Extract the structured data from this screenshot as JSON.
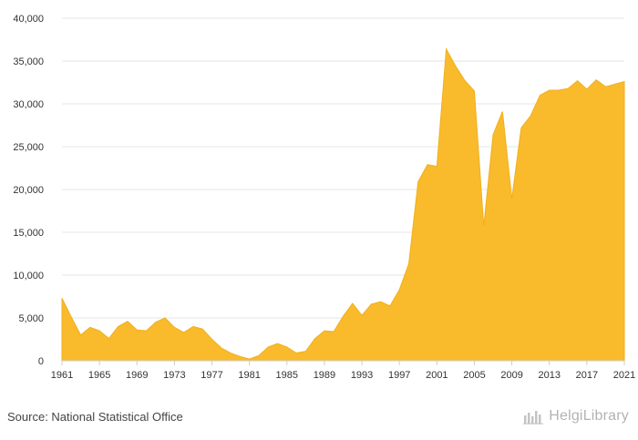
{
  "chart_data": {
    "type": "area",
    "title": "",
    "xlabel": "",
    "ylabel": "",
    "ylim": [
      0,
      40000
    ],
    "xlim": [
      1961,
      2021
    ],
    "y_ticks": [
      0,
      5000,
      10000,
      15000,
      20000,
      25000,
      30000,
      35000,
      40000
    ],
    "y_tick_labels": [
      "0",
      "5,000",
      "10,000",
      "15,000",
      "20,000",
      "25,000",
      "30,000",
      "35,000",
      "40,000"
    ],
    "x_ticks": [
      1961,
      1965,
      1969,
      1973,
      1977,
      1981,
      1985,
      1989,
      1993,
      1997,
      2001,
      2005,
      2009,
      2013,
      2017,
      2021
    ],
    "x_tick_labels": [
      "1961",
      "1965",
      "1969",
      "1973",
      "1977",
      "1981",
      "1985",
      "1989",
      "1993",
      "1997",
      "2001",
      "2005",
      "2009",
      "2013",
      "2017",
      "2021"
    ],
    "grid": true,
    "color": "#f9bb2c",
    "x": [
      1961,
      1962,
      1963,
      1964,
      1965,
      1966,
      1967,
      1968,
      1969,
      1970,
      1971,
      1972,
      1973,
      1974,
      1975,
      1976,
      1977,
      1978,
      1979,
      1980,
      1981,
      1982,
      1983,
      1984,
      1985,
      1986,
      1987,
      1988,
      1989,
      1990,
      1991,
      1992,
      1993,
      1994,
      1995,
      1996,
      1997,
      1998,
      1999,
      2000,
      2001,
      2002,
      2003,
      2004,
      2005,
      2006,
      2007,
      2008,
      2009,
      2010,
      2011,
      2012,
      2013,
      2014,
      2015,
      2016,
      2017,
      2018,
      2019,
      2020,
      2021
    ],
    "values": [
      7300,
      5100,
      3000,
      3900,
      3500,
      2600,
      4000,
      4600,
      3600,
      3500,
      4500,
      5000,
      3900,
      3300,
      4000,
      3700,
      2500,
      1500,
      900,
      500,
      200,
      600,
      1600,
      2000,
      1600,
      900,
      1100,
      2600,
      3500,
      3400,
      5200,
      6700,
      5300,
      6600,
      6900,
      6400,
      8300,
      11300,
      20900,
      22900,
      22700,
      36400,
      34400,
      32700,
      31500,
      15700,
      26400,
      29100,
      18900,
      27200,
      28600,
      31000,
      31600,
      31600,
      31800,
      32700,
      31700,
      32800,
      32000,
      32300,
      32600
    ]
  },
  "footer": {
    "source": "Source: National Statistical Office",
    "brand_prefix": "Helgi",
    "brand_suffix": "Library",
    "brand_icon": "helgi-library-logo-icon"
  }
}
